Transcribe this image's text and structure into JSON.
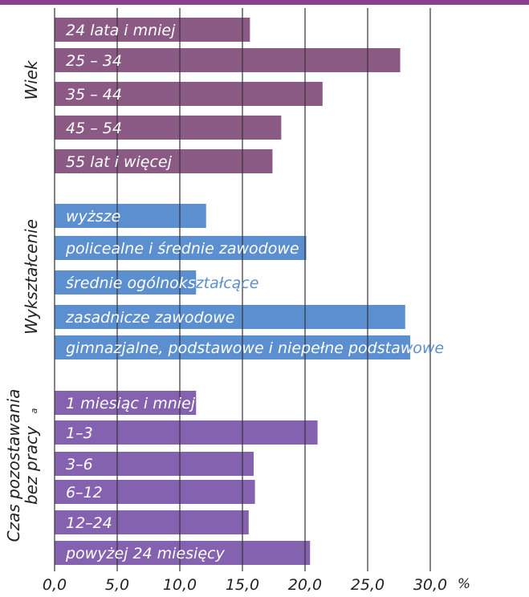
{
  "chart_data": {
    "type": "bar",
    "orientation": "horizontal",
    "xlim": [
      0,
      30
    ],
    "xticks": [
      "0,0",
      "5,0",
      "10,0",
      "15,0",
      "20,0",
      "25,0",
      "30,0"
    ],
    "x_unit": "%",
    "grid": true,
    "groups": [
      {
        "label": "Wiek",
        "color": "#8b5a84",
        "bars": [
          {
            "label": "24 lata i mniej",
            "value": 15.6
          },
          {
            "label": "25 – 34",
            "value": 27.6
          },
          {
            "label": "35 – 44",
            "value": 21.4
          },
          {
            "label": "45 – 54",
            "value": 18.1
          },
          {
            "label": "55 lat i więcej",
            "value": 17.4
          }
        ]
      },
      {
        "label": "Wykształcenie",
        "color": "#5b8fd0",
        "bars": [
          {
            "label": "wyższe",
            "value": 12.1
          },
          {
            "label": "policealne i średnie zawodowe",
            "value": 20.1
          },
          {
            "label": "średnie ogólnokształcące",
            "value": 11.3
          },
          {
            "label": "zasadnicze zawodowe",
            "value": 28.0
          },
          {
            "label": "gimnazjalne, podstawowe i niepełne podstawowe",
            "value": 28.4
          }
        ]
      },
      {
        "label": "Czas pozostawania bez pracy",
        "label_lines": [
          "Czas pozostawania",
          "bez pracy"
        ],
        "label_sup": "a",
        "color": "#8462b0",
        "bars": [
          {
            "label": "1 miesiąc i mniej",
            "value": 11.3
          },
          {
            "label": "1–3",
            "value": 21.0
          },
          {
            "label": "3–6",
            "value": 15.9
          },
          {
            "label": "6–12",
            "value": 16.0
          },
          {
            "label": "12–24",
            "value": 15.5
          },
          {
            "label": "powyżej 24 miesięcy",
            "value": 20.4
          }
        ]
      }
    ],
    "colors": {
      "top_band": "#8a3f8f",
      "text_inside": "#ffffff",
      "text_outside": "#5b8fd0",
      "text_outside_violet": "#8462b0",
      "axis_text": "#222222",
      "grid": "#333333"
    }
  }
}
